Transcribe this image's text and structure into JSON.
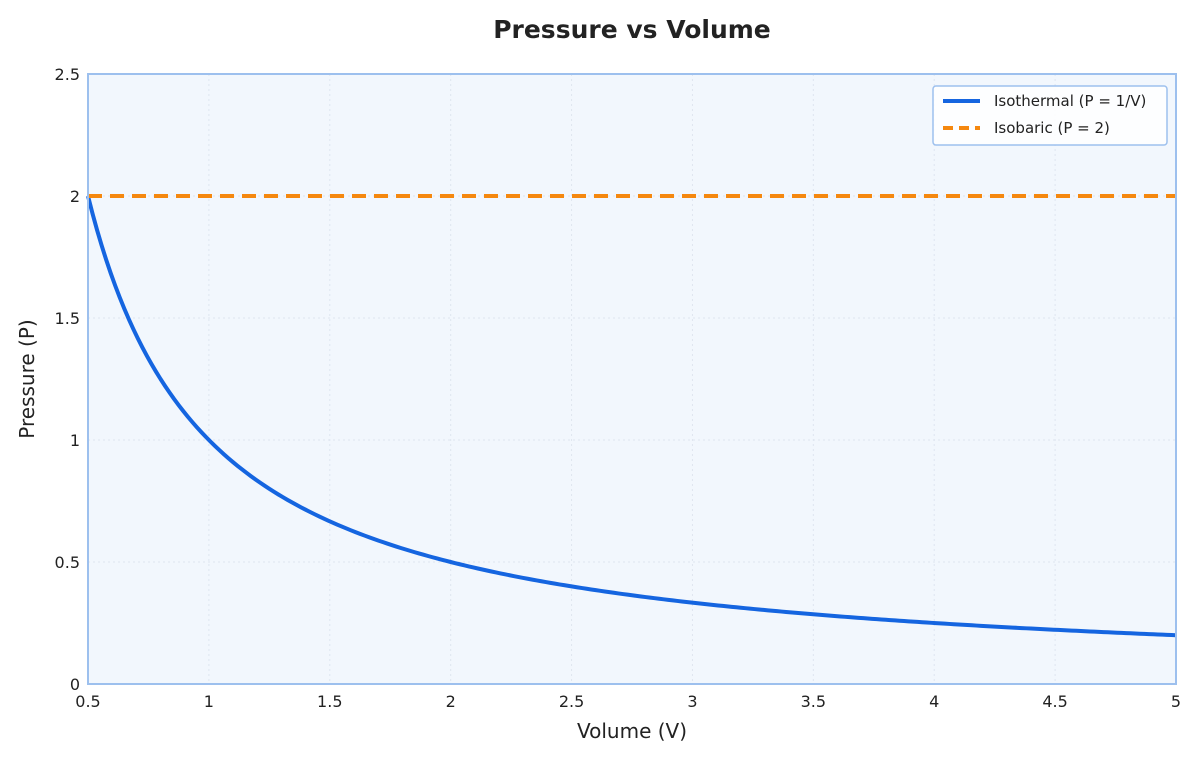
{
  "chart_data": {
    "type": "line",
    "title": "Pressure vs Volume",
    "xlabel": "Volume (V)",
    "ylabel": "Pressure (P)",
    "xlim": [
      0.5,
      5
    ],
    "ylim": [
      0,
      2.5
    ],
    "x_ticks": [
      0.5,
      1,
      1.5,
      2,
      2.5,
      3,
      3.5,
      4,
      4.5,
      5
    ],
    "x_tick_labels": [
      "0.5",
      "1",
      "1.5",
      "2",
      "2.5",
      "3",
      "3.5",
      "4",
      "4.5",
      "5"
    ],
    "y_ticks": [
      0,
      0.5,
      1,
      1.5,
      2,
      2.5
    ],
    "y_tick_labels": [
      "0",
      "0.5",
      "1",
      "1.5",
      "2",
      "2.5"
    ],
    "grid": true,
    "legend_position": "top-right",
    "series": [
      {
        "name": "Isothermal (P = 1/V)",
        "style": "solid",
        "color": "#1565e0",
        "x": [
          0.5,
          0.55,
          0.6,
          0.65,
          0.7,
          0.75,
          0.8,
          0.85,
          0.9,
          0.95,
          1.0,
          1.1,
          1.2,
          1.3,
          1.4,
          1.5,
          1.6,
          1.7,
          1.8,
          1.9,
          2.0,
          2.25,
          2.5,
          2.75,
          3.0,
          3.25,
          3.5,
          3.75,
          4.0,
          4.25,
          4.5,
          4.75,
          5.0
        ],
        "y": [
          2.0,
          1.818,
          1.667,
          1.538,
          1.429,
          1.333,
          1.25,
          1.176,
          1.111,
          1.053,
          1.0,
          0.909,
          0.833,
          0.769,
          0.714,
          0.667,
          0.625,
          0.588,
          0.556,
          0.526,
          0.5,
          0.444,
          0.4,
          0.364,
          0.333,
          0.308,
          0.286,
          0.267,
          0.25,
          0.235,
          0.222,
          0.211,
          0.2
        ]
      },
      {
        "name": "Isobaric (P = 2)",
        "style": "dashed",
        "color": "#f5880f",
        "x": [
          0.5,
          5
        ],
        "y": [
          2,
          2
        ]
      }
    ]
  },
  "colors": {
    "plot_background": "#f2f7fd",
    "plot_border": "#9dc0ee",
    "grid": "#dfe6f0"
  }
}
